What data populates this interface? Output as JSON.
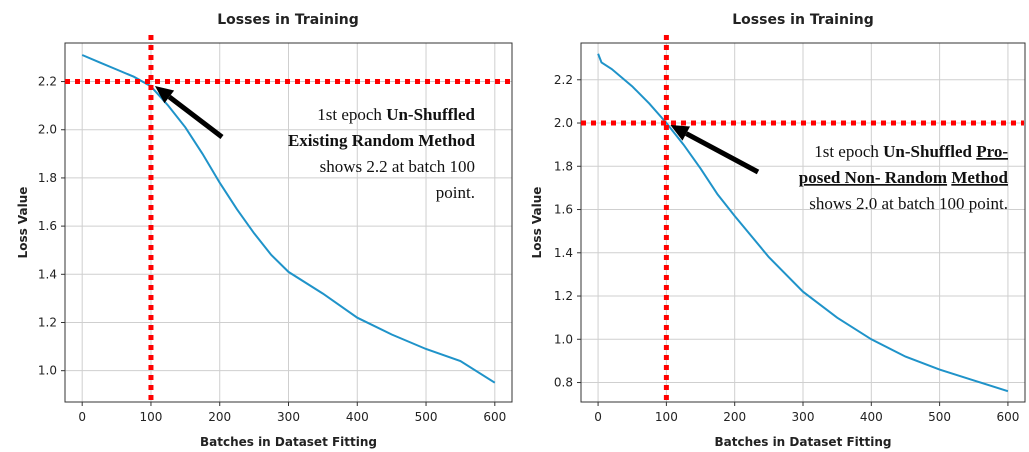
{
  "chart_data": [
    {
      "type": "line",
      "title": "Losses in Training",
      "xlabel": "Batches in Dataset Fitting",
      "ylabel": "Loss Value",
      "xlim": [
        -25,
        625
      ],
      "ylim": [
        0.87,
        2.36
      ],
      "xticks": [
        0,
        100,
        200,
        300,
        400,
        500,
        600
      ],
      "yticks": [
        1.0,
        1.2,
        1.4,
        1.6,
        1.8,
        2.0,
        2.2
      ],
      "ytick_labels": [
        "1.0",
        "1.2",
        "1.4",
        "1.6",
        "1.8",
        "2.0",
        "2.2"
      ],
      "grid": true,
      "series": [
        {
          "color": "#1f93c9",
          "x": [
            0,
            25,
            50,
            75,
            100,
            125,
            150,
            175,
            200,
            225,
            250,
            275,
            300,
            350,
            400,
            450,
            500,
            550,
            600
          ],
          "y": [
            2.31,
            2.28,
            2.25,
            2.22,
            2.18,
            2.1,
            2.01,
            1.9,
            1.78,
            1.67,
            1.57,
            1.48,
            1.41,
            1.32,
            1.22,
            1.15,
            1.09,
            1.04,
            0.95
          ]
        }
      ],
      "reference_lines": {
        "x": 100,
        "y": 2.2,
        "color": "#ff0000"
      },
      "annotation": {
        "lines": [
          [
            {
              "text": "1st epoch ",
              "bold": false
            },
            {
              "text": "Un-Shuffled",
              "bold": true
            }
          ],
          [
            {
              "text": "Existing Random Method",
              "bold": true
            }
          ],
          [
            {
              "text": "shows 2.2 at batch 100",
              "bold": false
            }
          ],
          [
            {
              "text": "point.",
              "bold": false
            }
          ]
        ],
        "arrow_target": {
          "x": 100,
          "y": 2.19
        }
      }
    },
    {
      "type": "line",
      "title": "Losses in Training",
      "xlabel": "Batches in Dataset Fitting",
      "ylabel": "Loss Value",
      "xlim": [
        -25,
        625
      ],
      "ylim": [
        0.71,
        2.37
      ],
      "xticks": [
        0,
        100,
        200,
        300,
        400,
        500,
        600
      ],
      "yticks": [
        0.8,
        1.0,
        1.2,
        1.4,
        1.6,
        1.8,
        2.0,
        2.2
      ],
      "ytick_labels": [
        "0.8",
        "1.0",
        "1.2",
        "1.4",
        "1.6",
        "1.8",
        "2.0",
        "2.2"
      ],
      "grid": true,
      "series": [
        {
          "color": "#1f93c9",
          "x": [
            0,
            5,
            20,
            50,
            75,
            100,
            125,
            150,
            175,
            200,
            250,
            300,
            350,
            400,
            450,
            500,
            550,
            600
          ],
          "y": [
            2.32,
            2.28,
            2.25,
            2.17,
            2.09,
            2.0,
            1.9,
            1.79,
            1.67,
            1.57,
            1.38,
            1.22,
            1.1,
            1.0,
            0.92,
            0.86,
            0.81,
            0.76
          ]
        }
      ],
      "reference_lines": {
        "x": 100,
        "y": 2.0,
        "color": "#ff0000"
      },
      "annotation": {
        "lines": [
          [
            {
              "text": "1st epoch ",
              "bold": false
            },
            {
              "text": "Un-Shuffled ",
              "bold": true
            },
            {
              "text": "Pro-",
              "bold": true,
              "underline": true
            }
          ],
          [
            {
              "text": "posed Non- Random",
              "bold": true,
              "underline": true
            },
            {
              "text": " ",
              "bold": true
            },
            {
              "text": "Method",
              "bold": true,
              "underline": true
            }
          ],
          [
            {
              "text": "shows 2.0 at batch 100 point.",
              "bold": false
            }
          ]
        ],
        "arrow_target": {
          "x": 100,
          "y": 2.0
        }
      }
    }
  ]
}
